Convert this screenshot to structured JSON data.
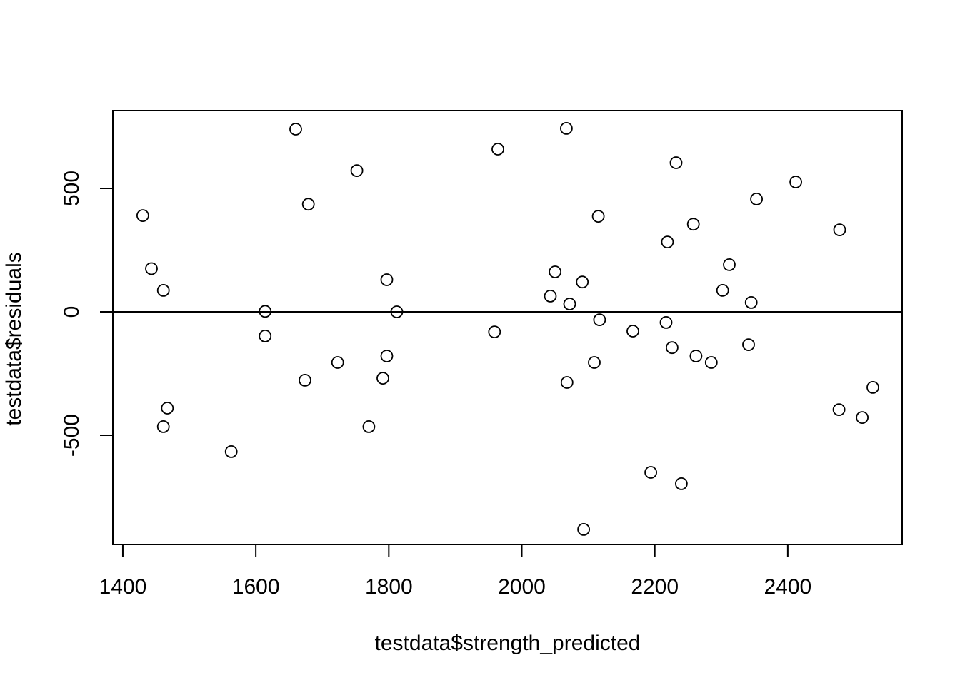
{
  "figure": {
    "background": "#ffffff",
    "foreground": "#000000"
  },
  "chart_data": {
    "type": "scatter",
    "title": "",
    "xlabel": "testdata$strength_predicted",
    "ylabel": "testdata$residuals",
    "x_ticks": [
      1400,
      1600,
      1800,
      2000,
      2200,
      2400
    ],
    "y_ticks": [
      -500,
      0,
      500
    ],
    "xlim": [
      1385,
      2572
    ],
    "ylim": [
      -942,
      815
    ],
    "grid": false,
    "legend": "none",
    "reference_line_y": 0,
    "marker": "open-circle",
    "points": [
      [
        1430,
        390
      ],
      [
        1443,
        175
      ],
      [
        1461,
        87
      ],
      [
        1467,
        -390
      ],
      [
        1461,
        -465
      ],
      [
        1563,
        -566
      ],
      [
        1614,
        2
      ],
      [
        1614,
        -98
      ],
      [
        1660,
        740
      ],
      [
        1679,
        436
      ],
      [
        1674,
        -277
      ],
      [
        1723,
        -205
      ],
      [
        1752,
        572
      ],
      [
        1770,
        -465
      ],
      [
        1797,
        130
      ],
      [
        1797,
        -179
      ],
      [
        1791,
        -269
      ],
      [
        1812,
        0
      ],
      [
        1959,
        -81
      ],
      [
        1964,
        659
      ],
      [
        2043,
        64
      ],
      [
        2050,
        162
      ],
      [
        2067,
        743
      ],
      [
        2072,
        32
      ],
      [
        2068,
        -286
      ],
      [
        2091,
        121
      ],
      [
        2093,
        -881
      ],
      [
        2115,
        387
      ],
      [
        2117,
        -32
      ],
      [
        2109,
        -205
      ],
      [
        2167,
        -78
      ],
      [
        2194,
        -650
      ],
      [
        2219,
        283
      ],
      [
        2217,
        -43
      ],
      [
        2226,
        -145
      ],
      [
        2232,
        604
      ],
      [
        2240,
        -696
      ],
      [
        2258,
        355
      ],
      [
        2262,
        -179
      ],
      [
        2285,
        -205
      ],
      [
        2302,
        87
      ],
      [
        2312,
        191
      ],
      [
        2341,
        -133
      ],
      [
        2345,
        38
      ],
      [
        2353,
        457
      ],
      [
        2412,
        526
      ],
      [
        2478,
        332
      ],
      [
        2477,
        -396
      ],
      [
        2512,
        -428
      ],
      [
        2528,
        -306
      ]
    ]
  }
}
